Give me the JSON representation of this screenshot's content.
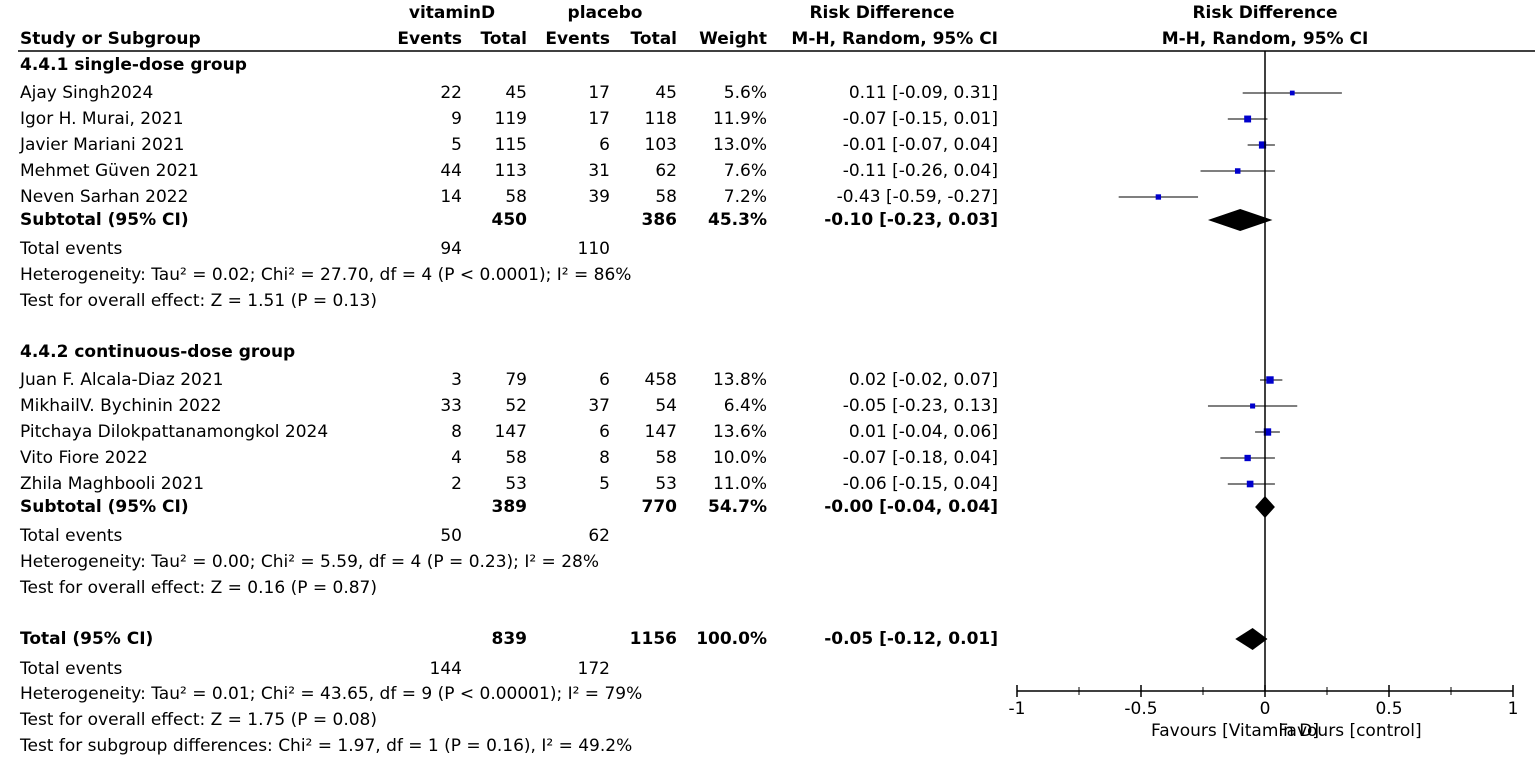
{
  "chart_data": {
    "type": "forest",
    "headers": {
      "group1": "vitaminD",
      "group2": "placebo",
      "study": "Study or Subgroup",
      "events": "Events",
      "total": "Total",
      "weight": "Weight",
      "effect": "Risk Difference",
      "method": "M-H, Random, 95% CI"
    },
    "subgroups": [
      {
        "title": "4.4.1 single-dose group",
        "studies": [
          {
            "name": "Ajay Singh2024",
            "e1": 22,
            "n1": 45,
            "e2": 17,
            "n2": 45,
            "weight": 5.6,
            "weight_label": "5.6%",
            "rd": 0.11,
            "lo": -0.09,
            "hi": 0.31,
            "ci_label": "0.11 [-0.09, 0.31]"
          },
          {
            "name": "Igor H. Murai, 2021",
            "e1": 9,
            "n1": 119,
            "e2": 17,
            "n2": 118,
            "weight": 11.9,
            "weight_label": "11.9%",
            "rd": -0.07,
            "lo": -0.15,
            "hi": 0.01,
            "ci_label": "-0.07 [-0.15, 0.01]"
          },
          {
            "name": "Javier Mariani 2021",
            "e1": 5,
            "n1": 115,
            "e2": 6,
            "n2": 103,
            "weight": 13.0,
            "weight_label": "13.0%",
            "rd": -0.01,
            "lo": -0.07,
            "hi": 0.04,
            "ci_label": "-0.01 [-0.07, 0.04]"
          },
          {
            "name": "Mehmet Güven 2021",
            "e1": 44,
            "n1": 113,
            "e2": 31,
            "n2": 62,
            "weight": 7.6,
            "weight_label": "7.6%",
            "rd": -0.11,
            "lo": -0.26,
            "hi": 0.04,
            "ci_label": "-0.11 [-0.26, 0.04]"
          },
          {
            "name": "Neven Sarhan 2022",
            "e1": 14,
            "n1": 58,
            "e2": 39,
            "n2": 58,
            "weight": 7.2,
            "weight_label": "7.2%",
            "rd": -0.43,
            "lo": -0.59,
            "hi": -0.27,
            "ci_label": "-0.43 [-0.59, -0.27]"
          }
        ],
        "subtotal": {
          "label": "Subtotal (95% CI)",
          "n1": 450,
          "n2": 386,
          "weight": 45.3,
          "weight_label": "45.3%",
          "rd": -0.1,
          "lo": -0.23,
          "hi": 0.03,
          "ci_label": "-0.10 [-0.23, 0.03]"
        },
        "events_label": "Total events",
        "e1": 94,
        "e2": 110,
        "heterogeneity": "Heterogeneity: Tau² = 0.02; Chi² = 27.70, df = 4 (P < 0.0001); I² = 86%",
        "overall": "Test for overall effect: Z = 1.51 (P = 0.13)"
      },
      {
        "title": "4.4.2 continuous-dose group",
        "studies": [
          {
            "name": "Juan F. Alcala-Diaz 2021",
            "e1": 3,
            "n1": 79,
            "e2": 6,
            "n2": 458,
            "weight": 13.8,
            "weight_label": "13.8%",
            "rd": 0.02,
            "lo": -0.02,
            "hi": 0.07,
            "ci_label": "0.02 [-0.02, 0.07]"
          },
          {
            "name": "MikhailV. Bychinin 2022",
            "e1": 33,
            "n1": 52,
            "e2": 37,
            "n2": 54,
            "weight": 6.4,
            "weight_label": "6.4%",
            "rd": -0.05,
            "lo": -0.23,
            "hi": 0.13,
            "ci_label": "-0.05 [-0.23, 0.13]"
          },
          {
            "name": "Pitchaya Dilokpattanamongkol 2024",
            "e1": 8,
            "n1": 147,
            "e2": 6,
            "n2": 147,
            "weight": 13.6,
            "weight_label": "13.6%",
            "rd": 0.01,
            "lo": -0.04,
            "hi": 0.06,
            "ci_label": "0.01 [-0.04, 0.06]"
          },
          {
            "name": "Vito Fiore 2022",
            "e1": 4,
            "n1": 58,
            "e2": 8,
            "n2": 58,
            "weight": 10.0,
            "weight_label": "10.0%",
            "rd": -0.07,
            "lo": -0.18,
            "hi": 0.04,
            "ci_label": "-0.07 [-0.18, 0.04]"
          },
          {
            "name": "Zhila Maghbooli 2021",
            "e1": 2,
            "n1": 53,
            "e2": 5,
            "n2": 53,
            "weight": 11.0,
            "weight_label": "11.0%",
            "rd": -0.06,
            "lo": -0.15,
            "hi": 0.04,
            "ci_label": "-0.06 [-0.15, 0.04]"
          }
        ],
        "subtotal": {
          "label": "Subtotal (95% CI)",
          "n1": 389,
          "n2": 770,
          "weight": 54.7,
          "weight_label": "54.7%",
          "rd": -0.0,
          "lo": -0.04,
          "hi": 0.04,
          "ci_label": "-0.00 [-0.04, 0.04]"
        },
        "events_label": "Total events",
        "e1": 50,
        "e2": 62,
        "heterogeneity": "Heterogeneity: Tau² = 0.00; Chi² = 5.59, df = 4 (P = 0.23); I² = 28%",
        "overall": "Test for overall effect: Z = 0.16 (P = 0.87)"
      }
    ],
    "total": {
      "label": "Total (95% CI)",
      "n1": 839,
      "n2": 1156,
      "weight": 100.0,
      "weight_label": "100.0%",
      "rd": -0.05,
      "lo": -0.12,
      "hi": 0.01,
      "ci_label": "-0.05 [-0.12, 0.01]",
      "events_label": "Total events",
      "e1": 144,
      "e2": 172,
      "heterogeneity": "Heterogeneity: Tau² = 0.01; Chi² = 43.65, df = 9 (P < 0.00001); I² = 79%",
      "overall": "Test for overall effect: Z = 1.75 (P = 0.08)",
      "subgroup_diff": "Test for subgroup differences: Chi² = 1.97, df = 1 (P = 0.16), I² = 49.2%"
    },
    "xlim": [
      -1,
      1
    ],
    "xticks": [
      -1,
      -0.5,
      0,
      0.5,
      1
    ],
    "favours_left": "Favours [Vitamin D]",
    "favours_right": "Favours [control]",
    "point_color": "#0000cc",
    "line_color": "#555555",
    "diamond_color": "#000000"
  }
}
